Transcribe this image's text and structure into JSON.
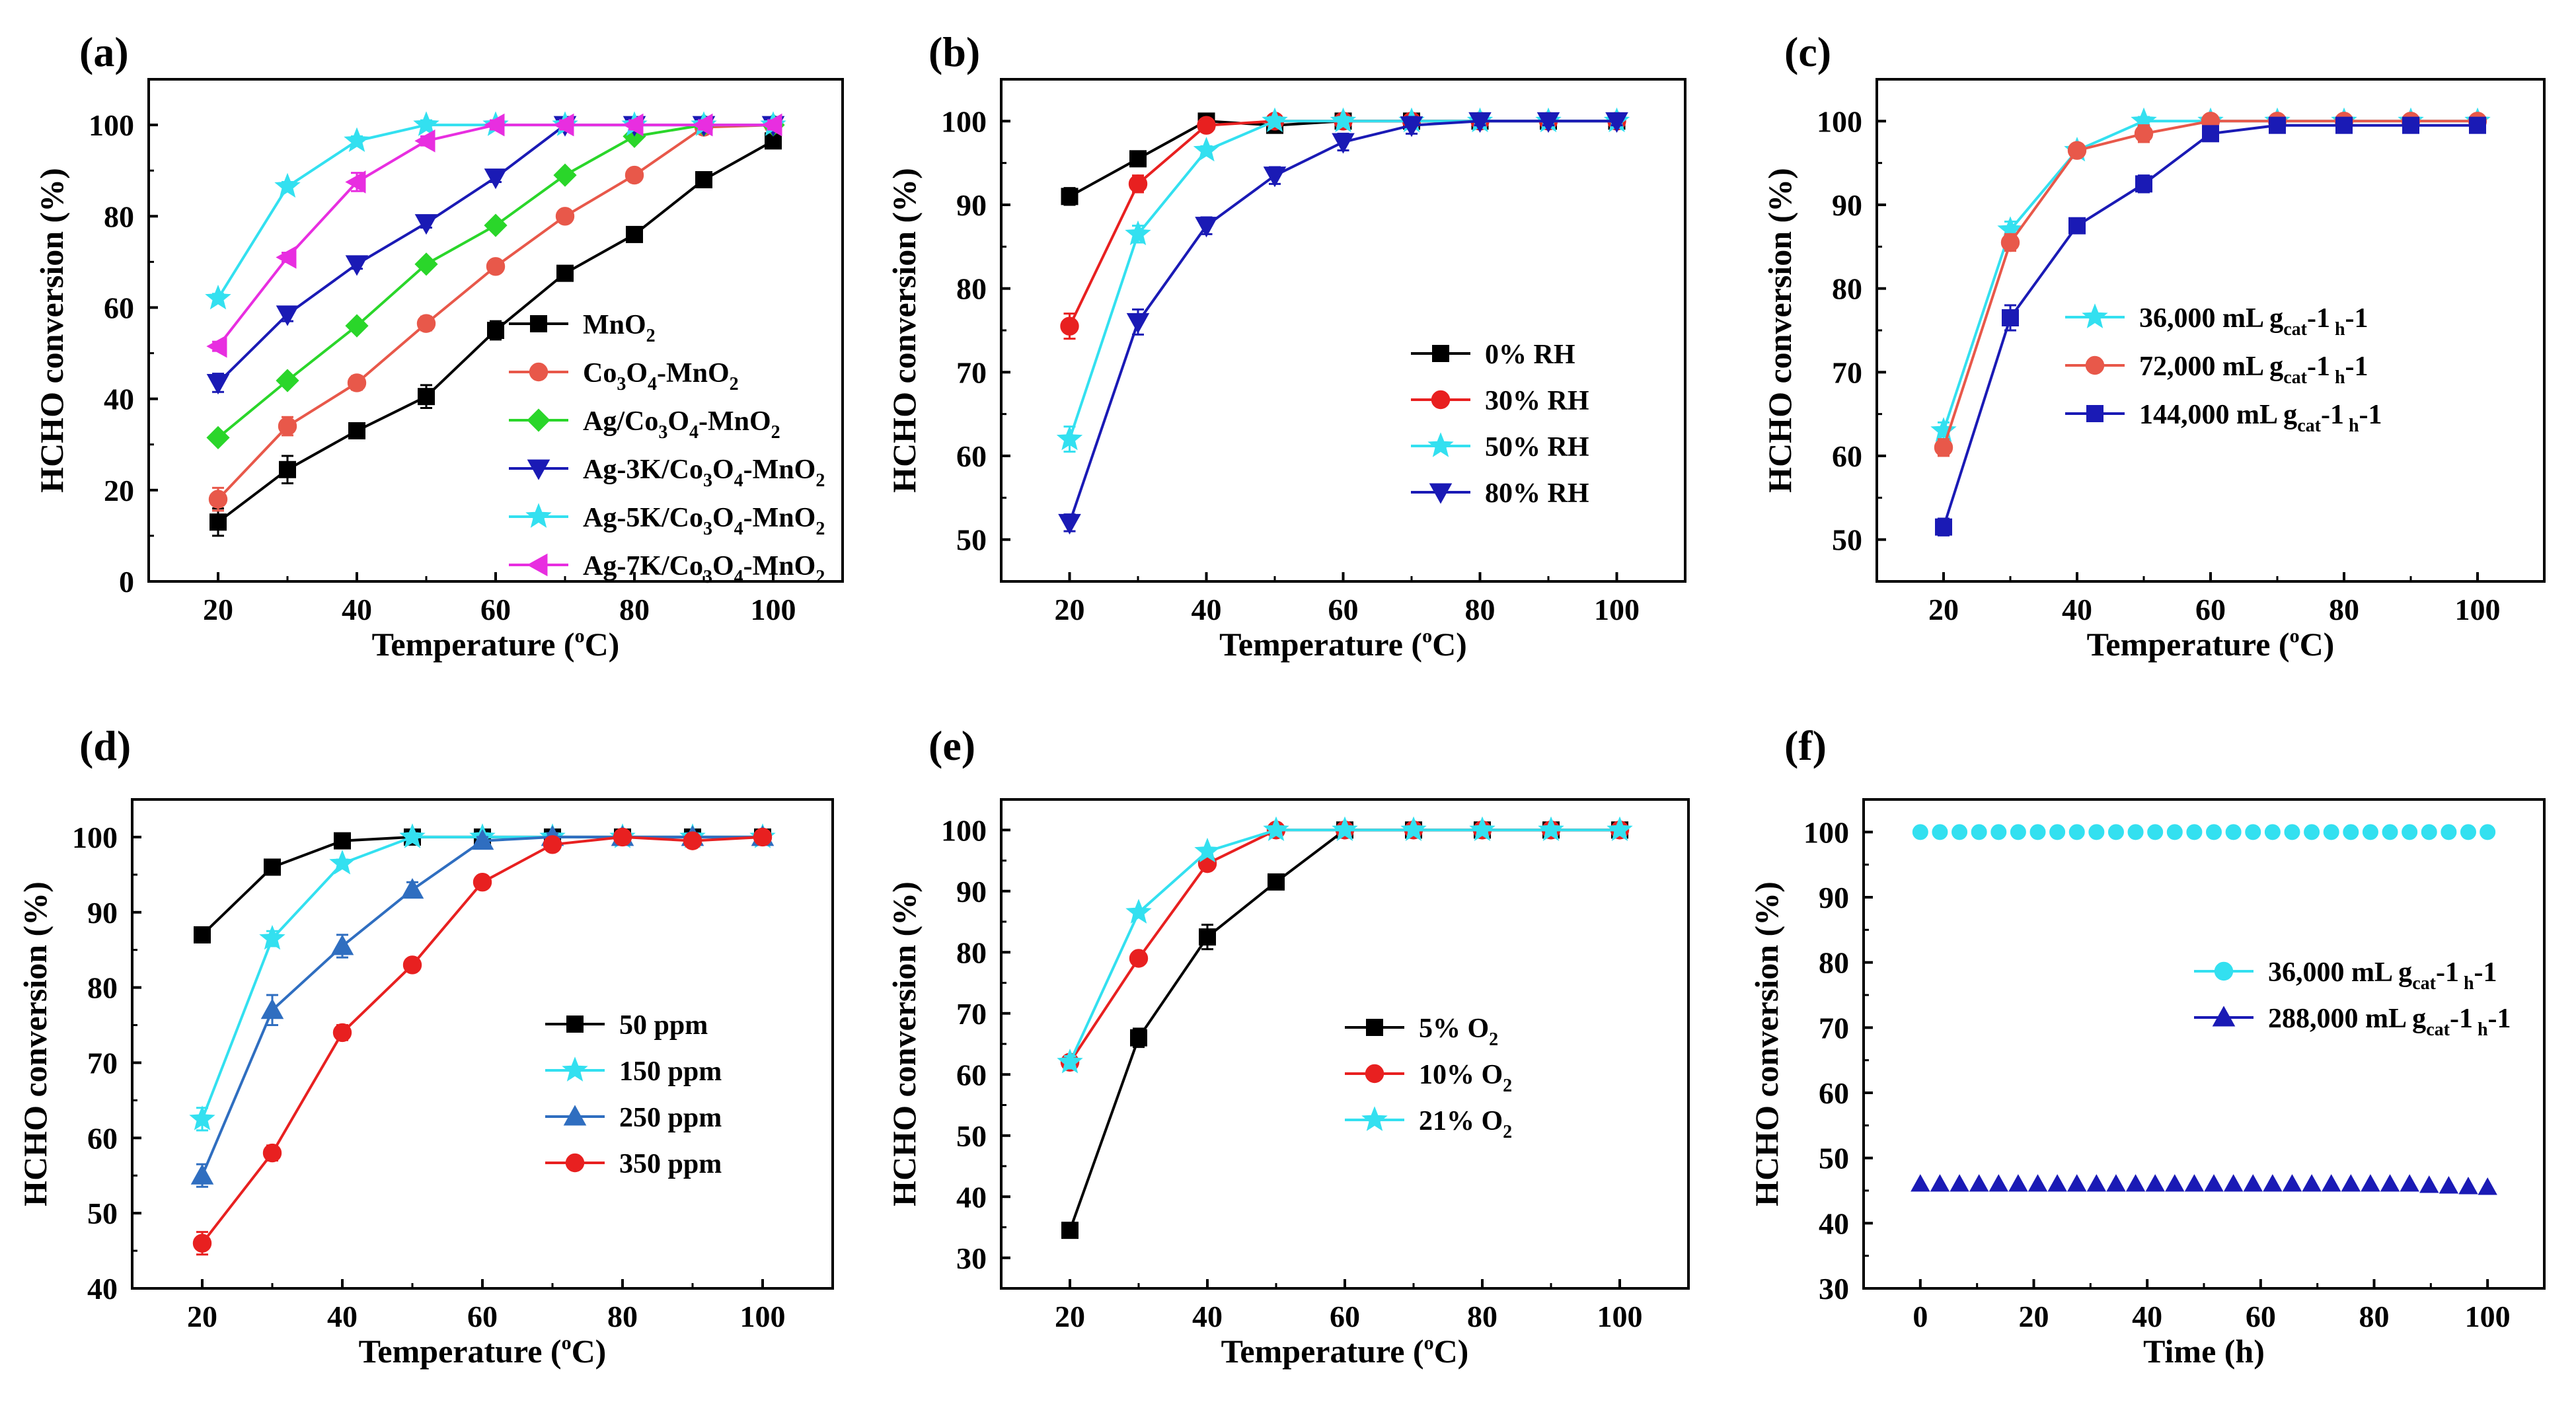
{
  "figure": {
    "panels": [
      "(a)",
      "(b)",
      "(c)",
      "(d)",
      "(e)",
      "(f)"
    ]
  },
  "chart_data": [
    {
      "panel": "(a)",
      "type": "line",
      "xlabel": "Temperature (oC)",
      "ylabel": "HCHO conversion (%)",
      "xlim": [
        10,
        110
      ],
      "ylim": [
        0,
        110
      ],
      "xticks": [
        20,
        40,
        60,
        80,
        100
      ],
      "yticks": [
        0,
        20,
        40,
        60,
        80,
        100
      ],
      "x": [
        20,
        30,
        40,
        50,
        60,
        70,
        80,
        90,
        100
      ],
      "legend_position": "center-right",
      "series": [
        {
          "name": "MnO2",
          "color": "#000000",
          "marker": "square",
          "legend": [
            "MnO",
            "2",
            ""
          ],
          "values": [
            13,
            24.5,
            33,
            40.5,
            55,
            67.5,
            76,
            88,
            96.5
          ],
          "err": [
            3,
            3,
            1,
            2.5,
            2,
            1,
            1,
            1,
            1
          ]
        },
        {
          "name": "Co3O4-MnO2",
          "color": "#e8584a",
          "marker": "circle",
          "legend": [
            "Co",
            "3",
            "O",
            "4",
            "-MnO",
            "2",
            ""
          ],
          "values": [
            18,
            34,
            43.5,
            56.5,
            69,
            80,
            89,
            99.5,
            100
          ],
          "err": [
            2.5,
            2,
            1.5,
            1.5,
            1,
            1,
            1,
            1,
            1
          ]
        },
        {
          "name": "Ag/Co3O4-MnO2",
          "color": "#2ad62a",
          "marker": "diamond",
          "legend": [
            "Ag/Co",
            "3",
            "O",
            "4",
            "-MnO",
            "2",
            ""
          ],
          "values": [
            31.5,
            44,
            56,
            69.5,
            78,
            89,
            97.5,
            100,
            100
          ],
          "err": [
            1,
            1,
            1,
            1,
            1,
            1,
            1,
            1,
            1
          ]
        },
        {
          "name": "Ag-3K/Co3O4-MnO2",
          "color": "#1a1ab5",
          "marker": "triangle-down",
          "legend": [
            "Ag-3K/Co",
            "3",
            "O",
            "4",
            "-MnO",
            "2",
            ""
          ],
          "values": [
            43.5,
            58.5,
            69.5,
            78.5,
            88.5,
            100,
            100,
            100,
            100
          ],
          "err": [
            2,
            1.5,
            1,
            1,
            1,
            1,
            1,
            1,
            1
          ]
        },
        {
          "name": "Ag-5K/Co3O4-MnO2",
          "color": "#33e0f0",
          "marker": "star",
          "legend": [
            "Ag-5K/Co",
            "3",
            "O",
            "4",
            "-MnO",
            "2",
            ""
          ],
          "values": [
            62,
            86.5,
            96.5,
            100,
            100,
            100,
            100,
            100,
            100
          ],
          "err": [
            1,
            1,
            1,
            1,
            1,
            1,
            1,
            1,
            1
          ]
        },
        {
          "name": "Ag-7K/Co3O4-MnO2",
          "color": "#e82ee0",
          "marker": "triangle-left",
          "legend": [
            "Ag-7K/Co",
            "3",
            "O",
            "4",
            "-MnO",
            "2",
            ""
          ],
          "values": [
            51.5,
            71,
            87.5,
            96.5,
            100,
            100,
            100,
            100,
            100
          ],
          "err": [
            1,
            1,
            2,
            1,
            1,
            1,
            1,
            1,
            1
          ]
        }
      ]
    },
    {
      "panel": "(b)",
      "type": "line",
      "xlabel": "Temperature (oC)",
      "ylabel": "HCHO conversion (%)",
      "xlim": [
        10,
        110
      ],
      "ylim": [
        45,
        105
      ],
      "xticks": [
        20,
        40,
        60,
        80,
        100
      ],
      "yticks": [
        50,
        60,
        70,
        80,
        90,
        100
      ],
      "x": [
        20,
        30,
        40,
        50,
        60,
        70,
        80,
        90,
        100
      ],
      "legend_position": "center-right",
      "series": [
        {
          "name": "0% RH",
          "color": "#000000",
          "marker": "square",
          "legend": [
            "0% RH"
          ],
          "values": [
            91,
            95.5,
            100,
            99.5,
            100,
            100,
            100,
            100,
            100
          ],
          "err": [
            1,
            0.5,
            0.5,
            0.5,
            0.5,
            0.5,
            0.5,
            0.5,
            0.5
          ]
        },
        {
          "name": "30% RH",
          "color": "#e82020",
          "marker": "circle",
          "legend": [
            "30% RH"
          ],
          "values": [
            75.5,
            92.5,
            99.5,
            100,
            100,
            100,
            100,
            100,
            100
          ],
          "err": [
            1.5,
            1,
            0.5,
            0.5,
            0.5,
            0.5,
            0.5,
            0.5,
            0.5
          ]
        },
        {
          "name": "50% RH",
          "color": "#33e0f0",
          "marker": "star",
          "legend": [
            "50% RH"
          ],
          "values": [
            62,
            86.5,
            96.5,
            100,
            100,
            100,
            100,
            100,
            100
          ],
          "err": [
            1.5,
            1,
            0.5,
            0.5,
            0.5,
            0.5,
            0.5,
            0.5,
            0.5
          ]
        },
        {
          "name": "80% RH",
          "color": "#1a1ab5",
          "marker": "triangle-down",
          "legend": [
            "80% RH"
          ],
          "values": [
            52,
            76,
            87.5,
            93.5,
            97.5,
            99.5,
            100,
            100,
            100
          ],
          "err": [
            1,
            1.5,
            1,
            1,
            1,
            1,
            0.5,
            0.5,
            0.5
          ]
        }
      ]
    },
    {
      "panel": "(c)",
      "type": "line",
      "xlabel": "Temperature (oC)",
      "ylabel": "HCHO conversion (%)",
      "xlim": [
        10,
        110
      ],
      "ylim": [
        45,
        105
      ],
      "xticks": [
        20,
        40,
        60,
        80,
        100
      ],
      "yticks": [
        50,
        60,
        70,
        80,
        90,
        100
      ],
      "x": [
        20,
        30,
        40,
        50,
        60,
        70,
        80,
        90,
        100
      ],
      "legend_position": "center-right",
      "series": [
        {
          "name": "36,000 mL gcat-1 h-1",
          "color": "#33e0f0",
          "marker": "star",
          "legend": [
            "36,000 mL g",
            "cat",
            "-1",
            " h",
            "-1",
            ""
          ],
          "values": [
            63,
            87,
            96.5,
            100,
            100,
            100,
            100,
            100,
            100
          ],
          "err": [
            1,
            1,
            0.5,
            0.5,
            0.5,
            0.5,
            0.5,
            0.5,
            0.5
          ]
        },
        {
          "name": "72,000 mL gcat-1 h-1",
          "color": "#e8584a",
          "marker": "circle",
          "legend": [
            "72,000 mL g",
            "cat",
            "-1",
            " h",
            "-1",
            ""
          ],
          "values": [
            61,
            85.5,
            96.5,
            98.5,
            100,
            100,
            100,
            100,
            100
          ],
          "err": [
            1,
            1,
            0.5,
            1,
            0.5,
            0.5,
            0.5,
            0.5,
            0.5
          ]
        },
        {
          "name": "144,000 mL gcat-1 h-1",
          "color": "#1a1ab5",
          "marker": "square",
          "legend": [
            "144,000 mL g",
            "cat",
            "-1",
            " h",
            "-1",
            ""
          ],
          "values": [
            51.5,
            76.5,
            87.5,
            92.5,
            98.5,
            99.5,
            99.5,
            99.5,
            99.5
          ],
          "err": [
            1,
            1.5,
            0.5,
            1,
            0.5,
            0.5,
            0.5,
            0.5,
            0.5
          ]
        }
      ]
    },
    {
      "panel": "(d)",
      "type": "line",
      "xlabel": "Temperature (oC)",
      "ylabel": "HCHO conversion (%)",
      "xlim": [
        10,
        110
      ],
      "ylim": [
        40,
        105
      ],
      "xticks": [
        20,
        40,
        60,
        80,
        100
      ],
      "yticks": [
        40,
        50,
        60,
        70,
        80,
        90,
        100
      ],
      "x": [
        20,
        30,
        40,
        50,
        60,
        70,
        80,
        90,
        100
      ],
      "legend_position": "center-right",
      "series": [
        {
          "name": " 50 ppm",
          "color": "#000000",
          "marker": "square",
          "legend": [
            "  50 ppm"
          ],
          "values": [
            87,
            96,
            99.5,
            100,
            100,
            100,
            100,
            100,
            100
          ],
          "err": [
            1,
            0.5,
            0.5,
            0.5,
            0.5,
            0.5,
            0.5,
            0.5,
            0.5
          ]
        },
        {
          "name": "150 ppm",
          "color": "#33e0f0",
          "marker": "star",
          "legend": [
            "150 ppm"
          ],
          "values": [
            62.5,
            86.5,
            96.5,
            100,
            100,
            100,
            100,
            100,
            100
          ],
          "err": [
            1.5,
            1,
            0.5,
            0.5,
            0.5,
            0.5,
            0.5,
            0.5,
            0.5
          ]
        },
        {
          "name": "250 ppm",
          "color": "#2f6ec0",
          "marker": "triangle-up",
          "legend": [
            "250 ppm"
          ],
          "values": [
            55,
            77,
            85.5,
            93,
            99.5,
            100,
            100,
            100,
            100
          ],
          "err": [
            1.5,
            2,
            1.5,
            1,
            0.5,
            0.5,
            0.5,
            0.5,
            0.5
          ]
        },
        {
          "name": "350 ppm",
          "color": "#e82020",
          "marker": "circle",
          "legend": [
            "350 ppm"
          ],
          "values": [
            46,
            58,
            74,
            83,
            94,
            99,
            100,
            99.5,
            100
          ],
          "err": [
            1.5,
            1,
            1,
            0.5,
            0.5,
            0.5,
            0.5,
            0.5,
            0.5
          ]
        }
      ]
    },
    {
      "panel": "(e)",
      "type": "line",
      "xlabel": "Temperature (oC)",
      "ylabel": "HCHO conversion (%)",
      "xlim": [
        10,
        110
      ],
      "ylim": [
        25,
        105
      ],
      "xticks": [
        20,
        40,
        60,
        80,
        100
      ],
      "yticks": [
        30,
        40,
        50,
        60,
        70,
        80,
        90,
        100
      ],
      "x": [
        20,
        30,
        40,
        50,
        60,
        70,
        80,
        90,
        100
      ],
      "legend_position": "center-right",
      "series": [
        {
          "name": "5% O2",
          "color": "#000000",
          "marker": "square",
          "legend": [
            "5% O",
            "2",
            ""
          ],
          "values": [
            34.5,
            66,
            82.5,
            91.5,
            100,
            100,
            100,
            100,
            100
          ],
          "err": [
            1,
            1.5,
            2,
            0.5,
            0.5,
            0.5,
            0.5,
            0.5,
            0.5
          ]
        },
        {
          "name": "10% O2",
          "color": "#e82020",
          "marker": "circle",
          "legend": [
            "10% O",
            "2",
            ""
          ],
          "values": [
            62,
            79,
            94.5,
            100,
            100,
            100,
            100,
            100,
            100
          ],
          "err": [
            1,
            0.5,
            0.5,
            0.5,
            0.5,
            0.5,
            0.5,
            0.5,
            0.5
          ]
        },
        {
          "name": "21% O2",
          "color": "#33e0f0",
          "marker": "star",
          "legend": [
            "21% O",
            "2",
            ""
          ],
          "values": [
            62,
            86.5,
            96.5,
            100,
            100,
            100,
            100,
            100,
            100
          ],
          "err": [
            1,
            0.5,
            0.5,
            0.5,
            0.5,
            0.5,
            0.5,
            0.5,
            0.5
          ]
        }
      ]
    },
    {
      "panel": "(f)",
      "type": "scatter",
      "xlabel": "Time (h)",
      "ylabel": "HCHO conversion (%)",
      "xlim": [
        -10,
        110
      ],
      "ylim": [
        30,
        105
      ],
      "xticks": [
        0,
        20,
        40,
        60,
        80,
        100
      ],
      "yticks": [
        30,
        40,
        50,
        60,
        70,
        80,
        90,
        100
      ],
      "x": [
        0,
        3.45,
        6.9,
        10.35,
        13.8,
        17.25,
        20.7,
        24.15,
        27.6,
        31.05,
        34.5,
        37.95,
        41.4,
        44.85,
        48.3,
        51.75,
        55.2,
        58.65,
        62.1,
        65.55,
        69,
        72.45,
        75.9,
        79.35,
        82.8,
        86.25,
        89.7,
        93.15,
        96.6,
        100
      ],
      "legend_position": "center-right",
      "series": [
        {
          "name": "36,000 mL gcat-1 h-1",
          "color": "#33e0f0",
          "marker": "circle",
          "legend": [
            "36,000 mL g",
            "cat",
            "-1",
            " h",
            "-1",
            ""
          ],
          "values": [
            100,
            100,
            100,
            100,
            100,
            100,
            100,
            100,
            100,
            100,
            100,
            100,
            100,
            100,
            100,
            100,
            100,
            100,
            100,
            100,
            100,
            100,
            100,
            100,
            100,
            100,
            100,
            100,
            100,
            100
          ]
        },
        {
          "name": "288,000 mL gcat-1 h-1",
          "color": "#1a1ab5",
          "marker": "triangle-up",
          "legend": [
            "288,000 mL g",
            "cat",
            "-1",
            " h",
            "-1",
            ""
          ],
          "values": [
            46,
            46,
            46,
            46,
            46,
            46,
            46,
            46,
            46,
            46,
            46,
            46,
            46,
            46,
            46,
            46,
            46,
            46,
            46,
            46,
            46,
            46,
            46,
            46,
            46,
            46,
            45.8,
            45.7,
            45.6,
            45.5
          ]
        }
      ]
    }
  ]
}
